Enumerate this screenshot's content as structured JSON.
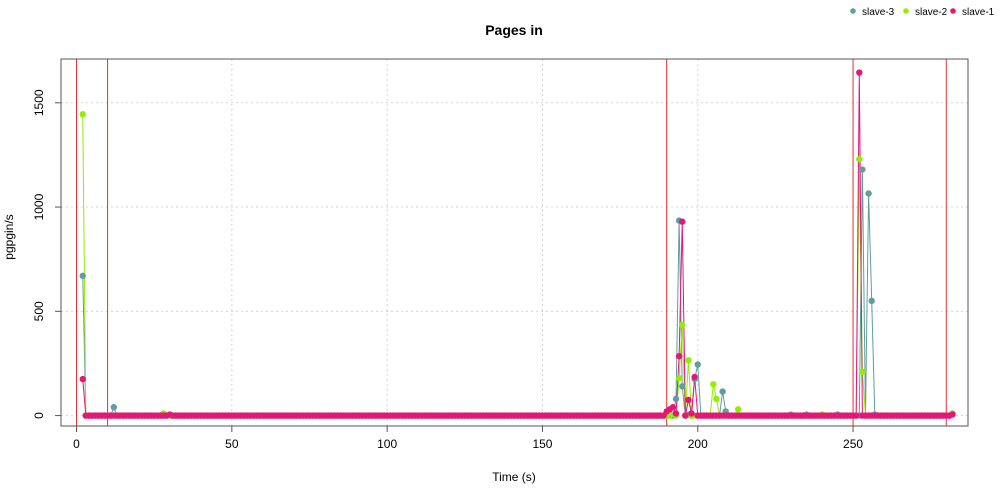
{
  "chart_data": {
    "type": "line",
    "title": "Pages in",
    "xlabel": "Time (s)",
    "ylabel": "pgpgin/s",
    "xlim": [
      -5,
      287
    ],
    "ylim": [
      -50,
      1710
    ],
    "grid": true,
    "legend_placement": "top-right",
    "x_ticks": [
      0,
      50,
      100,
      150,
      200,
      250
    ],
    "y_ticks": [
      0,
      500,
      1000,
      1500
    ],
    "x_tick_labels": [
      "0",
      "50",
      "100",
      "150",
      "200",
      "250"
    ],
    "y_tick_labels": [
      "0",
      "500",
      "1000",
      "1500"
    ],
    "vlines": [
      0,
      10,
      190,
      250,
      280
    ],
    "vline_color": "#e0312f",
    "x_start": 2,
    "x_end": 282,
    "series": [
      {
        "name": "slave-3",
        "color": "#5f9ea0",
        "spikes": [
          [
            2,
            670
          ],
          [
            12,
            40
          ],
          [
            193,
            80
          ],
          [
            194,
            935
          ],
          [
            195,
            140
          ],
          [
            197,
            5
          ],
          [
            199,
            175
          ],
          [
            200,
            245
          ],
          [
            208,
            115
          ],
          [
            209,
            20
          ],
          [
            230,
            5
          ],
          [
            235,
            5
          ],
          [
            245,
            5
          ],
          [
            253,
            1180
          ],
          [
            255,
            1065
          ],
          [
            256,
            550
          ],
          [
            257,
            5
          ],
          [
            282,
            10
          ]
        ]
      },
      {
        "name": "slave-2",
        "color": "#90ee00",
        "spikes": [
          [
            2,
            1445
          ],
          [
            28,
            10
          ],
          [
            192,
            40
          ],
          [
            194,
            180
          ],
          [
            195,
            435
          ],
          [
            197,
            265
          ],
          [
            205,
            150
          ],
          [
            206,
            80
          ],
          [
            213,
            30
          ],
          [
            240,
            5
          ],
          [
            252,
            1230
          ],
          [
            253,
            210
          ],
          [
            282,
            10
          ]
        ]
      },
      {
        "name": "slave-1",
        "color": "#e7157b",
        "spikes": [
          [
            2,
            175
          ],
          [
            30,
            5
          ],
          [
            190,
            20
          ],
          [
            191,
            30
          ],
          [
            192,
            40
          ],
          [
            193,
            10
          ],
          [
            194,
            285
          ],
          [
            195,
            930
          ],
          [
            197,
            75
          ],
          [
            198,
            10
          ],
          [
            199,
            185
          ],
          [
            252,
            1645
          ],
          [
            282,
            5
          ]
        ]
      }
    ]
  }
}
